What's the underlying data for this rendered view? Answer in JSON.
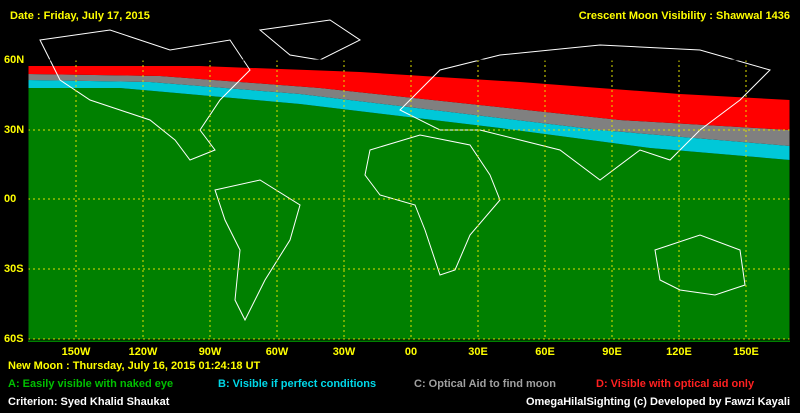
{
  "header": {
    "date": "Date : Friday, July 17, 2015",
    "title": "Crescent Moon Visibility : Shawwal  1436"
  },
  "map": {
    "lat_labels": [
      "60N",
      "30N",
      "00",
      "30S",
      "60S"
    ],
    "lon_labels": [
      "150W",
      "120W",
      "90W",
      "60W",
      "30W",
      "00",
      "30E",
      "60E",
      "90E",
      "120E",
      "150E"
    ]
  },
  "new_moon": "New Moon : Thursday, July 16, 2015  01:24:18  UT",
  "legend": [
    "A: Easily visible with naked eye",
    "B: Visible if perfect conditions",
    "C: Optical Aid to find moon",
    "D: Visible with optical aid only"
  ],
  "footer": {
    "criterion": "Criterion: Syed Khalid Shaukat",
    "credit": "OmegaHilalSighting  (c)  Developed by Fawzi Kayali"
  }
}
